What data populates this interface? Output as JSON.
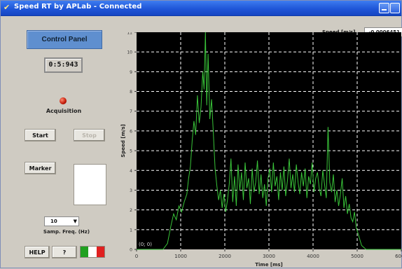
{
  "window": {
    "title": "Speed RT by APLab - Connected"
  },
  "control_panel": {
    "title": "Control Panel",
    "timer": "0:5:943",
    "acquisition_label": "Acquisition",
    "start_label": "Start",
    "stop_label": "Stop",
    "marker_label": "Marker",
    "samp_freq_value": "10",
    "samp_freq_label": "Samp. Freq. (Hz)",
    "help_label": "HELP",
    "question_label": "?",
    "flag_colors": [
      "#20a020",
      "#ffffff",
      "#e02020"
    ]
  },
  "speed": {
    "label": "Speed [m/s]",
    "value": "-0,0006451"
  },
  "colors": {
    "plot_bg": "#000000",
    "trace": "#39c439",
    "grid": "#ffffff"
  },
  "chart_data": {
    "type": "line",
    "xlabel": "Time [ms]",
    "ylabel": "Speed [m/s]",
    "xlim": [
      0,
      6000
    ],
    "ylim": [
      0,
      11
    ],
    "xticks": [
      0,
      1000,
      2000,
      3000,
      4000,
      5000,
      6000
    ],
    "yticks": [
      0,
      1,
      2,
      3,
      4,
      5,
      6,
      7,
      8,
      9,
      10,
      11
    ],
    "annotation": "(0; 0)",
    "grid": true,
    "series": [
      {
        "x": [
          0,
          600,
          700,
          780,
          840,
          900,
          960,
          1020,
          1080,
          1140,
          1180,
          1220,
          1260,
          1300,
          1340,
          1380,
          1420,
          1460,
          1500,
          1530,
          1560,
          1590,
          1620,
          1660,
          1700,
          1740,
          1780,
          1820,
          1860,
          1900,
          1940,
          1980,
          2020,
          2060,
          2100,
          2140,
          2180,
          2220,
          2260,
          2300,
          2340,
          2380,
          2420,
          2460,
          2500,
          2540,
          2580,
          2620,
          2660,
          2700,
          2740,
          2780,
          2820,
          2860,
          2900,
          2940,
          2980,
          3020,
          3060,
          3100,
          3140,
          3180,
          3220,
          3260,
          3300,
          3340,
          3380,
          3420,
          3460,
          3500,
          3540,
          3580,
          3620,
          3660,
          3700,
          3740,
          3780,
          3820,
          3860,
          3900,
          3940,
          3980,
          4020,
          4060,
          4100,
          4140,
          4180,
          4220,
          4260,
          4300,
          4340,
          4380,
          4420,
          4460,
          4500,
          4540,
          4580,
          4620,
          4660,
          4700,
          4740,
          4780,
          4820,
          4860,
          4900,
          4940,
          4980,
          5020,
          5060,
          5100,
          5200,
          6000
        ],
        "y": [
          0,
          0,
          0.3,
          1.2,
          1.8,
          1.5,
          2.2,
          1.9,
          2.4,
          2.8,
          3.6,
          4.2,
          5.5,
          6.5,
          5.8,
          7.8,
          6.4,
          7.2,
          9.0,
          8.1,
          11.0,
          7.3,
          9.9,
          6.6,
          7.6,
          5.9,
          4.1,
          3.2,
          2.5,
          3.0,
          2.1,
          2.8,
          1.9,
          2.5,
          3.3,
          4.6,
          2.4,
          3.7,
          2.2,
          4.3,
          3.0,
          3.9,
          2.5,
          4.4,
          3.1,
          3.6,
          2.3,
          4.1,
          2.9,
          3.4,
          4.5,
          2.8,
          3.8,
          2.6,
          3.3,
          2.2,
          3.6,
          4.1,
          2.9,
          4.4,
          3.2,
          3.7,
          2.5,
          3.9,
          3.0,
          4.2,
          2.7,
          3.5,
          4.6,
          3.1,
          3.8,
          2.9,
          4.3,
          3.4,
          2.8,
          3.9,
          3.2,
          4.1,
          2.6,
          3.7,
          3.3,
          4.4,
          2.9,
          3.6,
          3.9,
          3.1,
          2.7,
          4.0,
          3.3,
          2.6,
          6.2,
          3.4,
          2.9,
          3.8,
          2.4,
          3.0,
          2.2,
          2.8,
          3.6,
          2.1,
          2.7,
          1.8,
          2.3,
          1.6,
          1.4,
          1.9,
          1.1,
          0.8,
          0.5,
          0.2,
          0,
          0
        ]
      }
    ]
  }
}
